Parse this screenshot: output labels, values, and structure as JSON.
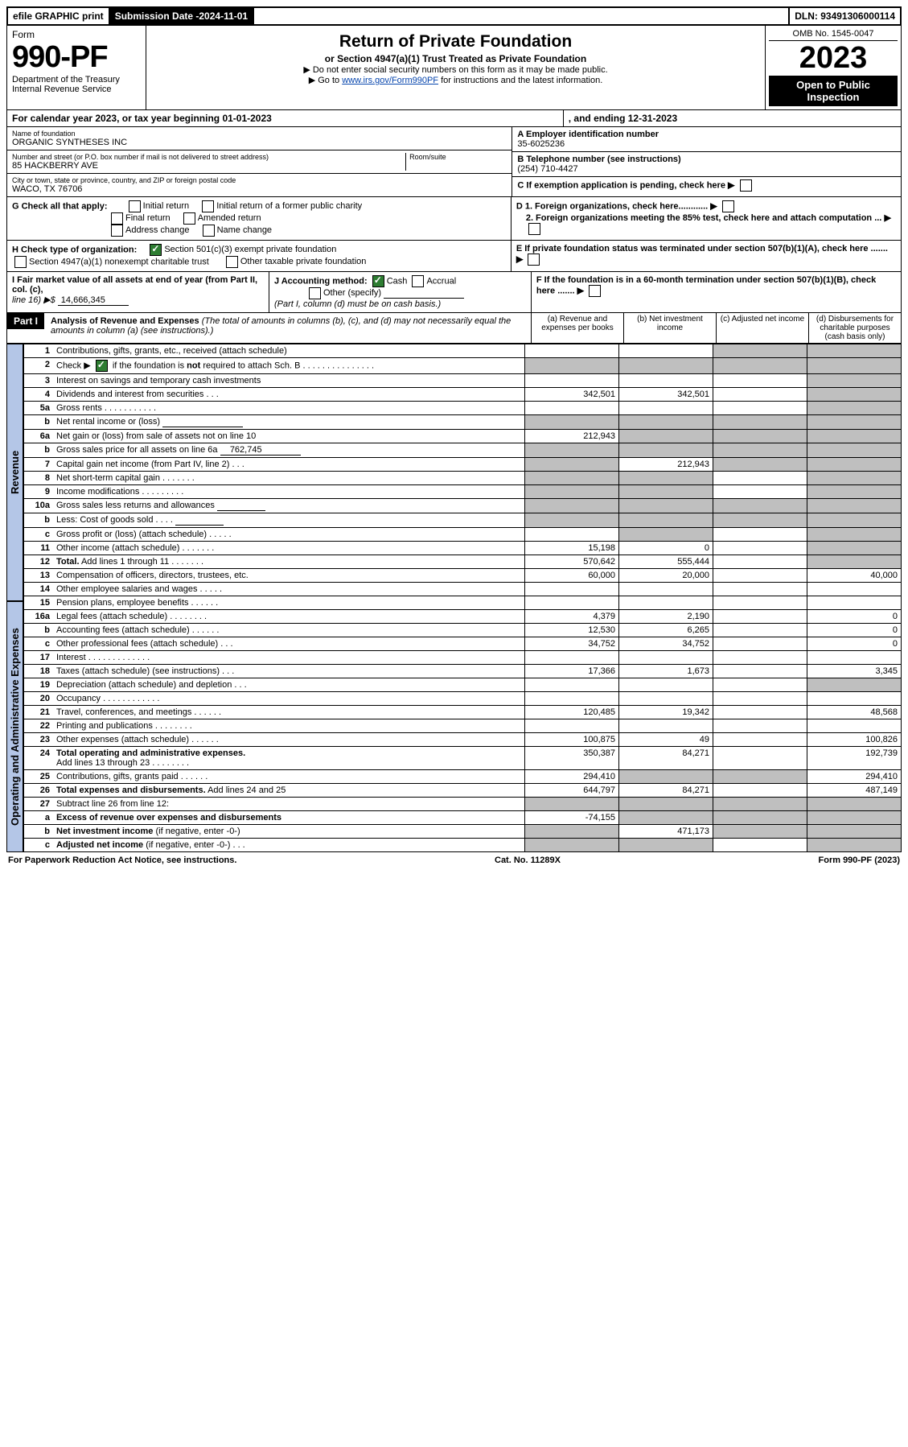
{
  "topbar": {
    "efile": "efile GRAPHIC print",
    "subdate_label": "Submission Date - ",
    "subdate": "2024-11-01",
    "dln_label": "DLN: ",
    "dln": "93491306000114"
  },
  "header": {
    "form_word": "Form",
    "form_no": "990-PF",
    "dept": "Department of the Treasury",
    "irs": "Internal Revenue Service",
    "title": "Return of Private Foundation",
    "subtitle": "or Section 4947(a)(1) Trust Treated as Private Foundation",
    "instr1": "▶ Do not enter social security numbers on this form as it may be made public.",
    "instr2_pre": "▶ Go to ",
    "instr2_link": "www.irs.gov/Form990PF",
    "instr2_post": " for instructions and the latest information.",
    "omb": "OMB No. 1545-0047",
    "year": "2023",
    "open": "Open to Public Inspection"
  },
  "calendar": {
    "text": "For calendar year 2023, or tax year beginning 01-01-2023",
    "ending": ", and ending 12-31-2023"
  },
  "entity": {
    "name_label": "Name of foundation",
    "name": "ORGANIC SYNTHESES INC",
    "addr_label": "Number and street (or P.O. box number if mail is not delivered to street address)",
    "addr": "85 HACKBERRY AVE",
    "room_label": "Room/suite",
    "city_label": "City or town, state or province, country, and ZIP or foreign postal code",
    "city": "WACO, TX  76706",
    "A_label": "A Employer identification number",
    "A": "35-6025236",
    "B_label": "B Telephone number (see instructions)",
    "B": "(254) 710-4427",
    "C": "C If exemption application is pending, check here"
  },
  "g": {
    "label": "G Check all that apply:",
    "opts": [
      "Initial return",
      "Initial return of a former public charity",
      "Final return",
      "Amended return",
      "Address change",
      "Name change"
    ]
  },
  "d": {
    "d1": "D 1. Foreign organizations, check here............",
    "d2": "2. Foreign organizations meeting the 85% test, check here and attach computation ..."
  },
  "e": "E  If private foundation status was terminated under section 507(b)(1)(A), check here .......",
  "h": {
    "label": "H Check type of organization:",
    "o1": "Section 501(c)(3) exempt private foundation",
    "o2": "Section 4947(a)(1) nonexempt charitable trust",
    "o3": "Other taxable private foundation"
  },
  "i": {
    "label": "I Fair market value of all assets at end of year (from Part II, col. (c),",
    "line": "line 16) ▶$",
    "val": "14,666,345"
  },
  "j": {
    "label": "J Accounting method:",
    "cash": "Cash",
    "accrual": "Accrual",
    "other": "Other (specify)",
    "note": "(Part I, column (d) must be on cash basis.)"
  },
  "f": "F  If the foundation is in a 60-month termination under section 507(b)(1)(B), check here .......",
  "part1": {
    "label": "Part I",
    "title": "Analysis of Revenue and Expenses",
    "note": "(The total of amounts in columns (b), (c), and (d) may not necessarily equal the amounts in column (a) (see instructions).)",
    "cols": {
      "a": "(a)   Revenue and expenses per books",
      "b": "(b)   Net investment income",
      "c": "(c)   Adjusted net income",
      "d": "(d)   Disbursements for charitable purposes (cash basis only)"
    }
  },
  "side": {
    "rev": "Revenue",
    "exp": "Operating and Administrative Expenses"
  },
  "rows": [
    {
      "n": "1",
      "d": "g",
      "a": "",
      "b": "",
      "c": "g"
    },
    {
      "n": "2",
      "d": "g",
      "a": "g",
      "b": "g",
      "c": "g"
    },
    {
      "n": "3",
      "d": "g",
      "a": "",
      "b": "",
      "c": ""
    },
    {
      "n": "4",
      "d": "g",
      "a": "342,501",
      "b": "342,501",
      "c": ""
    },
    {
      "n": "5a",
      "d": "g",
      "a": "",
      "b": "",
      "c": ""
    },
    {
      "n": "b",
      "d": "g",
      "a": "g",
      "b": "g",
      "c": "g"
    },
    {
      "n": "6a",
      "d": "g",
      "a": "212,943",
      "b": "g",
      "c": "g"
    },
    {
      "n": "b",
      "d": "g",
      "a": "g",
      "b": "g",
      "c": "g"
    },
    {
      "n": "7",
      "d": "g",
      "a": "g",
      "b": "212,943",
      "c": "g"
    },
    {
      "n": "8",
      "d": "g",
      "a": "g",
      "b": "g",
      "c": ""
    },
    {
      "n": "9",
      "d": "g",
      "a": "g",
      "b": "g",
      "c": ""
    },
    {
      "n": "10a",
      "d": "g",
      "a": "g",
      "b": "g",
      "c": "g"
    },
    {
      "n": "b",
      "d": "g",
      "a": "g",
      "b": "g",
      "c": "g"
    },
    {
      "n": "c",
      "d": "g",
      "a": "",
      "b": "g",
      "c": ""
    },
    {
      "n": "11",
      "d": "g",
      "a": "15,198",
      "b": "0",
      "c": ""
    },
    {
      "n": "12",
      "d": "g",
      "a": "570,642",
      "b": "555,444",
      "c": ""
    },
    {
      "n": "13",
      "d": "40,000",
      "a": "60,000",
      "b": "20,000",
      "c": ""
    },
    {
      "n": "14",
      "d": "",
      "a": "",
      "b": "",
      "c": ""
    },
    {
      "n": "15",
      "d": "",
      "a": "",
      "b": "",
      "c": ""
    },
    {
      "n": "16a",
      "d": "0",
      "a": "4,379",
      "b": "2,190",
      "c": ""
    },
    {
      "n": "b",
      "d": "0",
      "a": "12,530",
      "b": "6,265",
      "c": ""
    },
    {
      "n": "c",
      "d": "0",
      "a": "34,752",
      "b": "34,752",
      "c": ""
    },
    {
      "n": "17",
      "d": "",
      "a": "",
      "b": "",
      "c": ""
    },
    {
      "n": "18",
      "d": "3,345",
      "a": "17,366",
      "b": "1,673",
      "c": ""
    },
    {
      "n": "19",
      "d": "g",
      "a": "",
      "b": "",
      "c": ""
    },
    {
      "n": "20",
      "d": "",
      "a": "",
      "b": "",
      "c": ""
    },
    {
      "n": "21",
      "d": "48,568",
      "a": "120,485",
      "b": "19,342",
      "c": ""
    },
    {
      "n": "22",
      "d": "",
      "a": "",
      "b": "",
      "c": ""
    },
    {
      "n": "23",
      "d": "100,826",
      "a": "100,875",
      "b": "49",
      "c": ""
    },
    {
      "n": "24",
      "d": "192,739",
      "a": "350,387",
      "b": "84,271",
      "c": ""
    },
    {
      "n": "25",
      "d": "294,410",
      "a": "294,410",
      "b": "g",
      "c": "g"
    },
    {
      "n": "26",
      "d": "487,149",
      "a": "644,797",
      "b": "84,271",
      "c": ""
    },
    {
      "n": "27",
      "d": "g",
      "a": "g",
      "b": "g",
      "c": "g"
    },
    {
      "n": "a",
      "d": "g",
      "a": "-74,155",
      "b": "g",
      "c": "g"
    },
    {
      "n": "b",
      "d": "g",
      "a": "g",
      "b": "471,173",
      "c": "g"
    },
    {
      "n": "c",
      "d": "g",
      "a": "g",
      "b": "g",
      "c": ""
    }
  ],
  "footer": {
    "left": "For Paperwork Reduction Act Notice, see instructions.",
    "mid": "Cat. No. 11289X",
    "right": "Form 990-PF (2023)"
  }
}
